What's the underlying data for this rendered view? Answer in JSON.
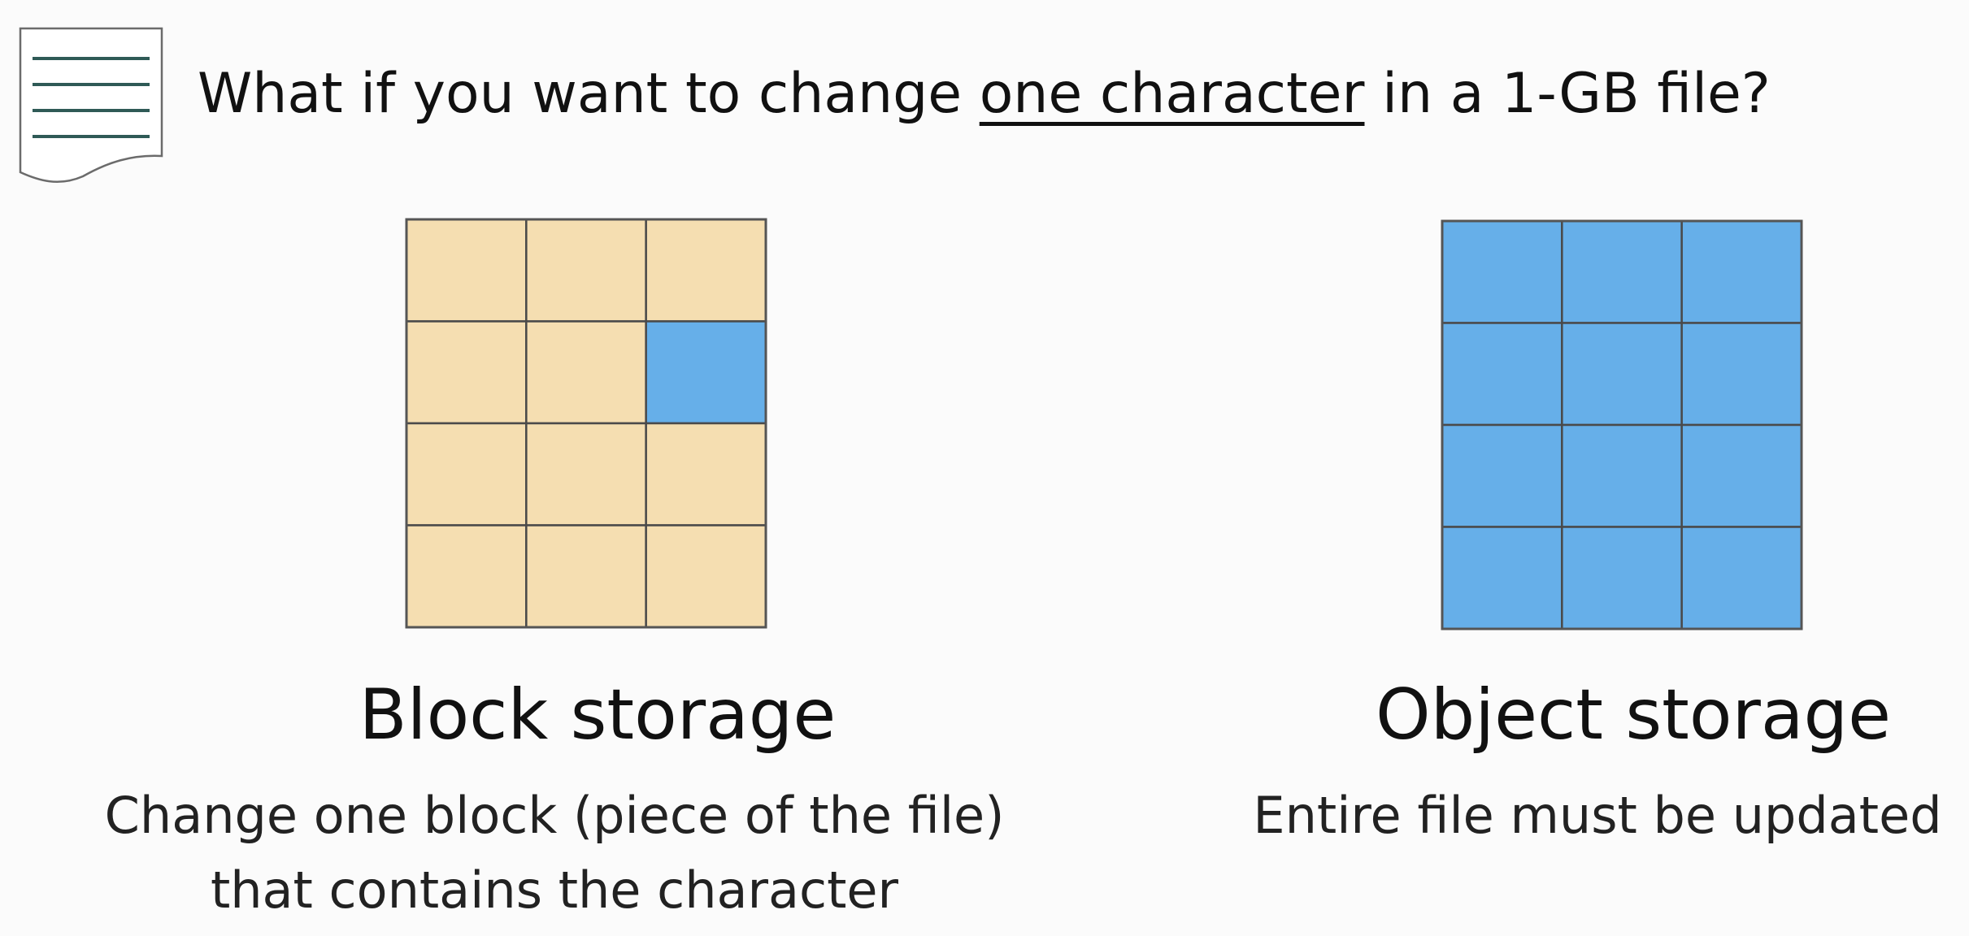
{
  "question": {
    "before": "What if you want to change ",
    "highlight": "one character",
    "after": " in a 1-GB file?"
  },
  "colors": {
    "block_unchanged": "#f5deb1",
    "block_changed": "#66afe9",
    "grid_line": "#4a4a4a"
  },
  "block_storage": {
    "title": "Block storage",
    "description_line1": "Change one block (piece of the file)",
    "description_line2": "that contains the character",
    "grid": {
      "rows": 4,
      "cols": 3,
      "changed_cells": [
        [
          1,
          2
        ]
      ]
    }
  },
  "object_storage": {
    "title": "Object storage",
    "description": "Entire file must be updated",
    "grid": {
      "rows": 4,
      "cols": 3,
      "all_changed": true
    }
  }
}
